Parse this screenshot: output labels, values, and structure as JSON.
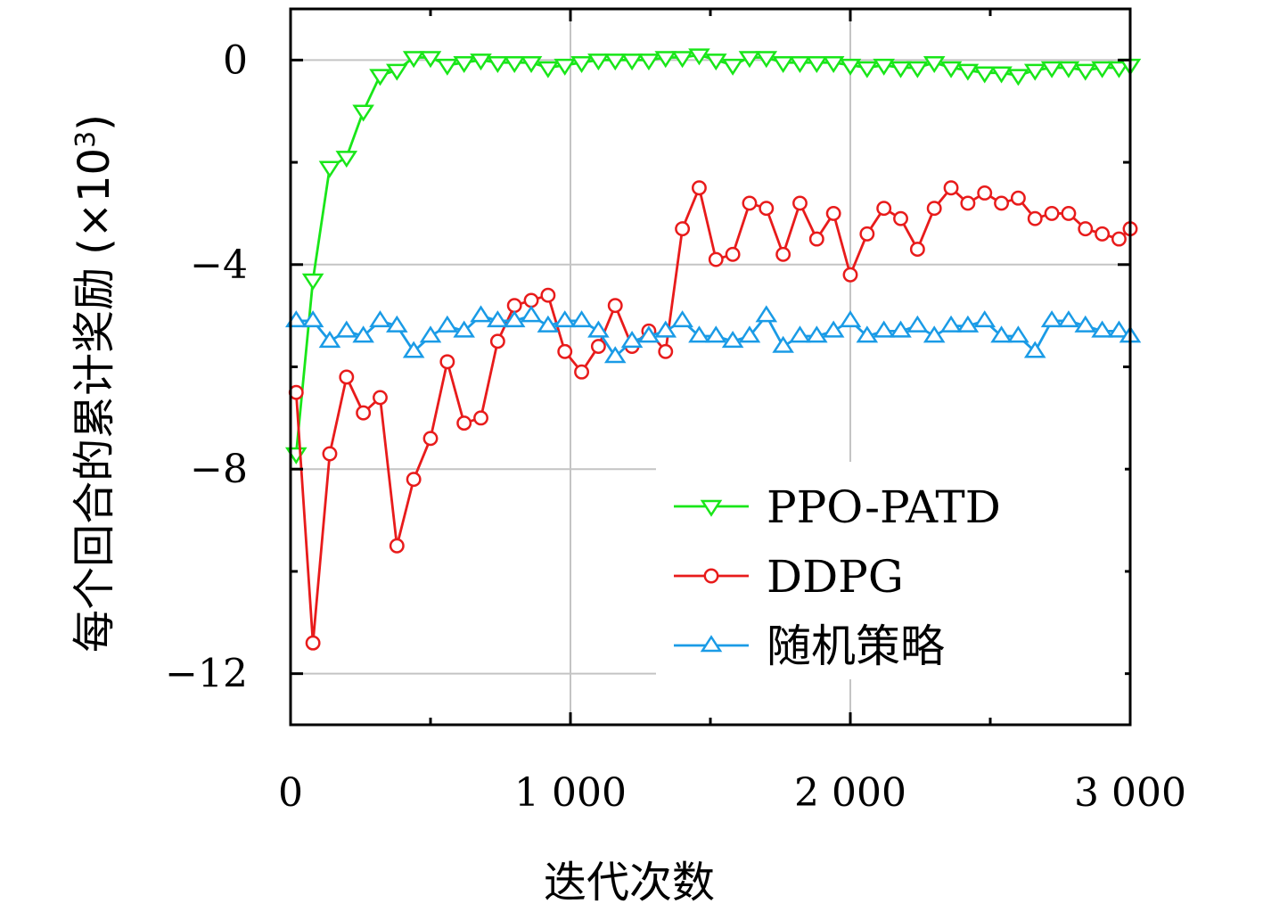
{
  "chart_data": {
    "type": "line",
    "xlabel": "迭代次数",
    "ylabel": "每个回合的累计奖励 (×10³)",
    "ylabel_text": "每个回合的累计奖励",
    "ylabel_unit_prefix": "(×10",
    "ylabel_unit_exp": "3",
    "ylabel_unit_suffix": ")",
    "xlim": [
      0,
      3000
    ],
    "ylim": [
      -13,
      1
    ],
    "x_ticks": [
      0,
      1000,
      2000,
      3000
    ],
    "x_tick_labels": [
      "0",
      "1 000",
      "2 000",
      "3 000"
    ],
    "y_ticks": [
      0,
      -4,
      -8,
      -12
    ],
    "y_tick_labels": [
      "0",
      "−4",
      "−8",
      "−12"
    ],
    "grid": true,
    "legend_position": "bottom-right",
    "series": [
      {
        "name": "PPO-PATD",
        "color": "#19e619",
        "marker": "triangle-down",
        "x": [
          20,
          80,
          140,
          200,
          260,
          320,
          380,
          440,
          500,
          560,
          620,
          680,
          740,
          800,
          860,
          920,
          980,
          1040,
          1100,
          1160,
          1220,
          1280,
          1340,
          1400,
          1460,
          1520,
          1580,
          1640,
          1700,
          1760,
          1820,
          1880,
          1940,
          2000,
          2060,
          2120,
          2180,
          2240,
          2300,
          2360,
          2420,
          2480,
          2540,
          2600,
          2660,
          2720,
          2780,
          2840,
          2900,
          2960,
          3000
        ],
        "values": [
          -7.7,
          -4.3,
          -2.1,
          -1.9,
          -1.0,
          -0.3,
          -0.2,
          0.05,
          0.05,
          -0.1,
          -0.05,
          0.0,
          -0.05,
          -0.05,
          -0.05,
          -0.15,
          -0.1,
          -0.05,
          0.0,
          0.0,
          0.0,
          0.0,
          0.05,
          0.05,
          0.1,
          0.0,
          -0.1,
          0.05,
          0.05,
          -0.05,
          -0.05,
          -0.05,
          -0.05,
          -0.1,
          -0.15,
          -0.1,
          -0.15,
          -0.15,
          -0.05,
          -0.15,
          -0.2,
          -0.25,
          -0.25,
          -0.3,
          -0.2,
          -0.15,
          -0.15,
          -0.2,
          -0.15,
          -0.15,
          -0.1
        ]
      },
      {
        "name": "DDPG",
        "color": "#e81b1b",
        "marker": "circle",
        "x": [
          20,
          80,
          140,
          200,
          260,
          320,
          380,
          440,
          500,
          560,
          620,
          680,
          740,
          800,
          860,
          920,
          980,
          1040,
          1100,
          1160,
          1220,
          1280,
          1340,
          1400,
          1460,
          1520,
          1580,
          1640,
          1700,
          1760,
          1820,
          1880,
          1940,
          2000,
          2060,
          2120,
          2180,
          2240,
          2300,
          2360,
          2420,
          2480,
          2540,
          2600,
          2660,
          2720,
          2780,
          2840,
          2900,
          2960,
          3000
        ],
        "values": [
          -6.5,
          -11.4,
          -7.7,
          -6.2,
          -6.9,
          -6.6,
          -9.5,
          -8.2,
          -7.4,
          -5.9,
          -7.1,
          -7.0,
          -5.5,
          -4.8,
          -4.7,
          -4.6,
          -5.7,
          -6.1,
          -5.6,
          -4.8,
          -5.6,
          -5.3,
          -5.7,
          -3.3,
          -2.5,
          -3.9,
          -3.8,
          -2.8,
          -2.9,
          -3.8,
          -2.8,
          -3.5,
          -3.0,
          -4.2,
          -3.4,
          -2.9,
          -3.1,
          -3.7,
          -2.9,
          -2.5,
          -2.8,
          -2.6,
          -2.8,
          -2.7,
          -3.1,
          -3.0,
          -3.0,
          -3.3,
          -3.4,
          -3.5,
          -3.3
        ]
      },
      {
        "name": "随机策略",
        "color": "#1a9be6",
        "marker": "triangle-up",
        "x": [
          20,
          80,
          140,
          200,
          260,
          320,
          380,
          440,
          500,
          560,
          620,
          680,
          740,
          800,
          860,
          920,
          980,
          1040,
          1100,
          1160,
          1220,
          1280,
          1340,
          1400,
          1460,
          1520,
          1580,
          1640,
          1700,
          1760,
          1820,
          1880,
          1940,
          2000,
          2060,
          2120,
          2180,
          2240,
          2300,
          2360,
          2420,
          2480,
          2540,
          2600,
          2660,
          2720,
          2780,
          2840,
          2900,
          2960,
          3000
        ],
        "values": [
          -5.1,
          -5.1,
          -5.5,
          -5.3,
          -5.4,
          -5.1,
          -5.2,
          -5.7,
          -5.4,
          -5.2,
          -5.3,
          -5.0,
          -5.1,
          -5.1,
          -5.0,
          -5.2,
          -5.1,
          -5.1,
          -5.3,
          -5.8,
          -5.5,
          -5.4,
          -5.3,
          -5.1,
          -5.4,
          -5.4,
          -5.5,
          -5.4,
          -5.0,
          -5.6,
          -5.4,
          -5.4,
          -5.3,
          -5.1,
          -5.4,
          -5.3,
          -5.3,
          -5.2,
          -5.4,
          -5.2,
          -5.2,
          -5.1,
          -5.4,
          -5.4,
          -5.7,
          -5.1,
          -5.1,
          -5.2,
          -5.3,
          -5.3,
          -5.4
        ]
      }
    ]
  }
}
